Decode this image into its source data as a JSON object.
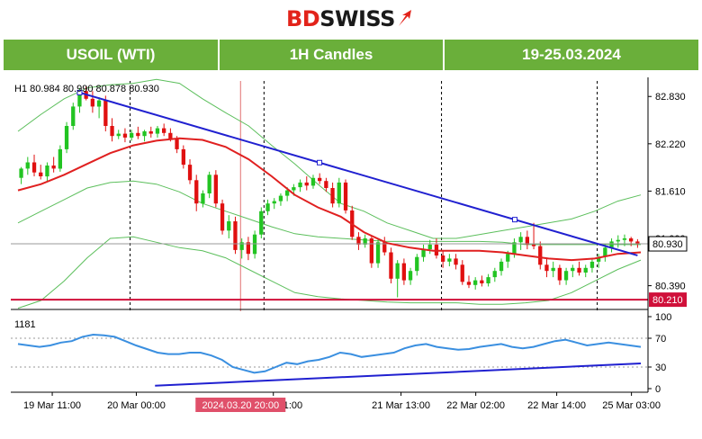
{
  "brand": {
    "name_part1": "BD",
    "name_part2": "SWISS",
    "colors": {
      "red": "#e2231a",
      "dark": "#1a1a1a",
      "header_green": "#6aaf3a"
    }
  },
  "header": {
    "symbol": "USOIL (WTI)",
    "timeframe": "1H Candles",
    "dates": "19-25.03.2024"
  },
  "chart_data": {
    "type": "candlestick",
    "info_line": "H1  80.984 80.990 80.878 80.930",
    "timeframe": "H1",
    "last_ohlc": {
      "open": 80.984,
      "high": 80.99,
      "low": 80.878,
      "close": 80.93
    },
    "price_axis_ticks": [
      "82.830",
      "82.220",
      "81.610",
      "81.000",
      "80.390"
    ],
    "current_price_label": "80.930",
    "support_level_label": "80.210",
    "ylim": [
      80.13,
      83.03
    ],
    "x_labels": [
      "19 Mar 11:00",
      "20 Mar 00:00",
      "21 Mar 01:00",
      "21 Mar 13:00",
      "22 Mar 02:00",
      "22 Mar 14:00",
      "25 Mar 03:00"
    ],
    "cursor_time_label": "2024.03.20 20:00",
    "colors": {
      "bull": "#22c422",
      "bear": "#e01010",
      "ma": "#e02020",
      "bands": "#5cbf5c",
      "trendline": "#2020d0",
      "rsi": "#3a8fe0",
      "support": "#d0103a"
    },
    "candles": [
      [
        81.78,
        81.92,
        81.7,
        81.9
      ],
      [
        81.9,
        82.05,
        81.82,
        81.98
      ],
      [
        81.98,
        82.08,
        81.8,
        81.85
      ],
      [
        81.85,
        81.95,
        81.76,
        81.8
      ],
      [
        81.8,
        81.98,
        81.74,
        81.94
      ],
      [
        81.94,
        82.05,
        81.85,
        81.9
      ],
      [
        81.9,
        82.2,
        81.86,
        82.15
      ],
      [
        82.15,
        82.5,
        82.1,
        82.45
      ],
      [
        82.45,
        82.75,
        82.4,
        82.7
      ],
      [
        82.7,
        82.94,
        82.62,
        82.9
      ],
      [
        82.9,
        82.96,
        82.78,
        82.8
      ],
      [
        82.8,
        82.9,
        82.62,
        82.7
      ],
      [
        82.7,
        82.82,
        82.55,
        82.78
      ],
      [
        82.78,
        82.84,
        82.38,
        82.45
      ],
      [
        82.45,
        82.55,
        82.25,
        82.32
      ],
      [
        82.32,
        82.4,
        82.28,
        82.35
      ],
      [
        82.35,
        82.42,
        82.24,
        82.3
      ],
      [
        82.3,
        82.4,
        82.26,
        82.36
      ],
      [
        82.36,
        82.44,
        82.28,
        82.32
      ],
      [
        82.32,
        82.4,
        82.25,
        82.38
      ],
      [
        82.38,
        82.44,
        82.3,
        82.35
      ],
      [
        82.35,
        82.45,
        82.3,
        82.42
      ],
      [
        82.42,
        82.48,
        82.32,
        82.36
      ],
      [
        82.36,
        82.42,
        82.25,
        82.28
      ],
      [
        82.28,
        82.32,
        82.1,
        82.15
      ],
      [
        82.15,
        82.2,
        81.9,
        81.95
      ],
      [
        81.95,
        82.02,
        81.7,
        81.75
      ],
      [
        81.75,
        81.82,
        81.35,
        81.45
      ],
      [
        81.45,
        81.62,
        81.4,
        81.58
      ],
      [
        81.58,
        81.86,
        81.52,
        81.82
      ],
      [
        81.82,
        81.88,
        81.4,
        81.45
      ],
      [
        81.45,
        81.5,
        81.05,
        81.1
      ],
      [
        81.1,
        81.3,
        81.0,
        81.22
      ],
      [
        81.22,
        81.28,
        80.8,
        80.85
      ],
      [
        80.85,
        81.0,
        80.74,
        80.95
      ],
      [
        80.95,
        81.02,
        80.72,
        80.8
      ],
      [
        80.8,
        81.1,
        80.74,
        81.05
      ],
      [
        81.05,
        81.4,
        81.0,
        81.35
      ],
      [
        81.35,
        81.5,
        81.3,
        81.45
      ],
      [
        81.45,
        81.52,
        81.38,
        81.48
      ],
      [
        81.48,
        81.58,
        81.42,
        81.55
      ],
      [
        81.55,
        81.66,
        81.48,
        81.62
      ],
      [
        81.62,
        81.7,
        81.55,
        81.66
      ],
      [
        81.66,
        81.76,
        81.6,
        81.72
      ],
      [
        81.72,
        81.8,
        81.62,
        81.68
      ],
      [
        81.68,
        81.82,
        81.64,
        81.78
      ],
      [
        81.78,
        81.84,
        81.7,
        81.74
      ],
      [
        81.74,
        81.78,
        81.6,
        81.65
      ],
      [
        81.65,
        81.72,
        81.4,
        81.45
      ],
      [
        81.45,
        81.78,
        81.4,
        81.72
      ],
      [
        81.72,
        81.76,
        81.32,
        81.36
      ],
      [
        81.36,
        81.42,
        80.98,
        81.02
      ],
      [
        81.02,
        81.08,
        80.85,
        80.92
      ],
      [
        80.92,
        81.05,
        80.88,
        81.0
      ],
      [
        81.0,
        81.04,
        80.62,
        80.68
      ],
      [
        80.68,
        81.0,
        80.62,
        80.95
      ],
      [
        80.95,
        81.02,
        80.78,
        80.82
      ],
      [
        80.82,
        80.88,
        80.42,
        80.48
      ],
      [
        80.48,
        80.72,
        80.24,
        80.68
      ],
      [
        80.68,
        80.74,
        80.4,
        80.46
      ],
      [
        80.46,
        80.62,
        80.4,
        80.58
      ],
      [
        80.58,
        80.8,
        80.52,
        80.76
      ],
      [
        80.76,
        80.92,
        80.7,
        80.86
      ],
      [
        80.86,
        80.98,
        80.8,
        80.92
      ],
      [
        80.92,
        81.0,
        80.74,
        80.78
      ],
      [
        80.78,
        80.84,
        80.62,
        80.7
      ],
      [
        80.7,
        80.8,
        80.64,
        80.74
      ],
      [
        80.74,
        80.8,
        80.6,
        80.66
      ],
      [
        80.66,
        80.72,
        80.4,
        80.44
      ],
      [
        80.44,
        80.52,
        80.36,
        80.4
      ],
      [
        80.4,
        80.5,
        80.34,
        80.46
      ],
      [
        80.46,
        80.52,
        80.38,
        80.42
      ],
      [
        80.42,
        80.54,
        80.38,
        80.5
      ],
      [
        80.5,
        80.62,
        80.44,
        80.58
      ],
      [
        80.58,
        80.74,
        80.52,
        80.7
      ],
      [
        80.7,
        80.84,
        80.62,
        80.8
      ],
      [
        80.8,
        81.0,
        80.75,
        80.95
      ],
      [
        80.95,
        81.08,
        80.85,
        81.02
      ],
      [
        81.02,
        81.1,
        80.86,
        80.92
      ],
      [
        80.92,
        81.2,
        80.86,
        80.9
      ],
      [
        80.9,
        80.96,
        80.6,
        80.66
      ],
      [
        80.66,
        80.74,
        80.5,
        80.58
      ],
      [
        80.58,
        80.7,
        80.5,
        80.62
      ],
      [
        80.62,
        80.66,
        80.4,
        80.46
      ],
      [
        80.46,
        80.62,
        80.4,
        80.58
      ],
      [
        80.58,
        80.66,
        80.5,
        80.62
      ],
      [
        80.62,
        80.7,
        80.52,
        80.56
      ],
      [
        80.56,
        80.66,
        80.5,
        80.62
      ],
      [
        80.62,
        80.74,
        80.56,
        80.7
      ],
      [
        80.7,
        80.8,
        80.62,
        80.76
      ],
      [
        80.76,
        80.92,
        80.7,
        80.88
      ],
      [
        80.88,
        81.0,
        80.82,
        80.96
      ],
      [
        80.96,
        81.04,
        80.88,
        80.98
      ],
      [
        80.98,
        81.05,
        80.9,
        81.0
      ],
      [
        81.0,
        81.02,
        80.9,
        80.96
      ],
      [
        80.96,
        80.99,
        80.878,
        80.93
      ]
    ],
    "ma_values": [
      81.62,
      81.7,
      81.82,
      81.96,
      82.1,
      82.2,
      82.26,
      82.29,
      82.27,
      82.18,
      82.02,
      81.8,
      81.56,
      81.4,
      81.28,
      81.08,
      80.94,
      80.88,
      80.84,
      80.84,
      80.84,
      80.82,
      80.78,
      80.74,
      80.72,
      80.74,
      80.8,
      80.82
    ],
    "band_upper": [
      82.38,
      82.6,
      82.8,
      82.94,
      82.98,
      83.0,
      83.05,
      83.0,
      82.8,
      82.62,
      82.45,
      82.2,
      81.96,
      81.7,
      81.45,
      81.35,
      81.2,
      81.1,
      81.0,
      81.0,
      81.05,
      81.1,
      81.15,
      81.2,
      81.25,
      81.35,
      81.48,
      81.56
    ],
    "band_middle": [
      81.2,
      81.35,
      81.5,
      81.65,
      81.72,
      81.74,
      81.7,
      81.6,
      81.45,
      81.35,
      81.25,
      81.15,
      81.06,
      81.02,
      81.0,
      80.98,
      80.96,
      80.96,
      80.96,
      80.96,
      80.96,
      80.95,
      80.92,
      80.92,
      80.92,
      80.92,
      80.92,
      80.92
    ],
    "band_lower": [
      80.1,
      80.2,
      80.45,
      80.75,
      81.0,
      81.02,
      80.95,
      80.88,
      80.84,
      80.75,
      80.6,
      80.45,
      80.3,
      80.25,
      80.22,
      80.2,
      80.18,
      80.17,
      80.17,
      80.17,
      80.15,
      80.15,
      80.17,
      80.2,
      80.3,
      80.45,
      80.6,
      80.72
    ],
    "trendline": {
      "start_candle": 9,
      "start_price": 82.88,
      "end_candle": 95,
      "end_price": 80.78
    },
    "support_price": 80.21,
    "rsi": {
      "label": "1181",
      "ticks": [
        "100",
        "70",
        "30",
        "0"
      ],
      "levels": [
        70,
        30
      ],
      "values": [
        62,
        60,
        58,
        60,
        64,
        66,
        72,
        75,
        74,
        72,
        66,
        60,
        55,
        50,
        48,
        48,
        50,
        50,
        46,
        40,
        30,
        26,
        22,
        24,
        30,
        36,
        34,
        38,
        40,
        44,
        50,
        48,
        44,
        46,
        48,
        50,
        56,
        60,
        62,
        58,
        56,
        54,
        55,
        58,
        60,
        62,
        58,
        56,
        58,
        62,
        66,
        68,
        64,
        60,
        62,
        64,
        62,
        60,
        58
      ],
      "trendline": {
        "start": [
          0.22,
          4
        ],
        "end": [
          1.0,
          35
        ]
      }
    }
  }
}
